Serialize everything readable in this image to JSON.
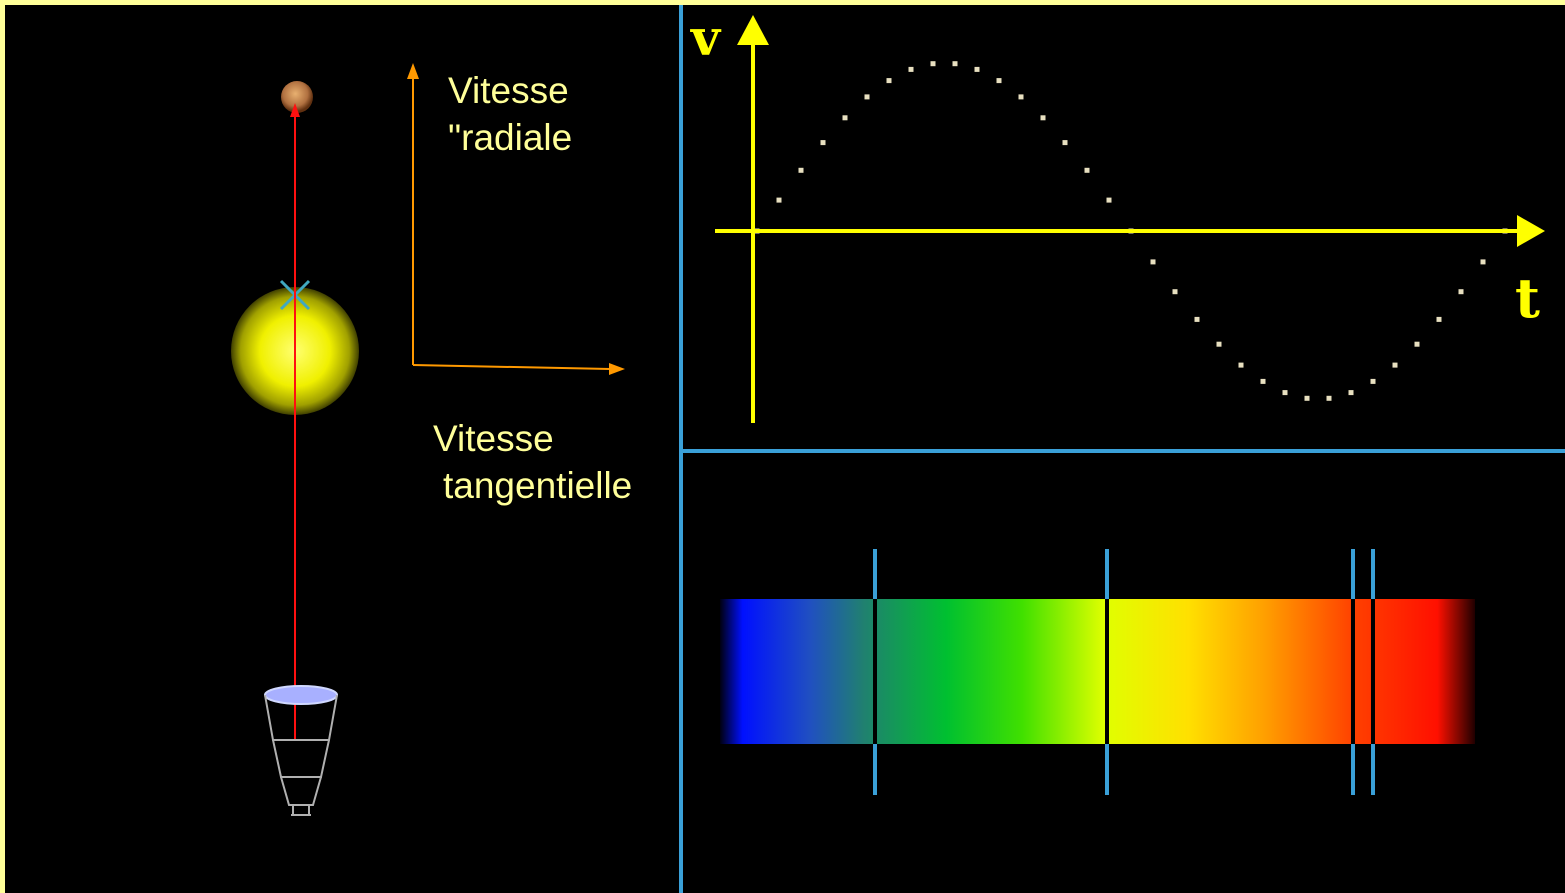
{
  "labels": {
    "radial_line1": "Vitesse",
    "radial_line2": "\"radiale",
    "tangential_line1": "Vitesse",
    "tangential_line2": "tangentielle"
  },
  "graph": {
    "v_axis_label": "v",
    "t_axis_label": "t",
    "sample_count": 34,
    "cycle_fraction_shown": 1.0
  },
  "spectrum": {
    "absorption_lines_count": 4
  },
  "colors": {
    "page_frame": "#ffff99",
    "background": "#000000",
    "panel_divider": "#3aa0d8",
    "label_text": "#ffff99",
    "graph_axis": "#ffff00",
    "graph_points": "#e8e0c0",
    "orbit_line": "#ff1010",
    "velocity_arrows": "#ff9900",
    "star_core": "#ffff70",
    "planet": "#c08050",
    "spectral_line_marker": "#3aa0d8"
  }
}
